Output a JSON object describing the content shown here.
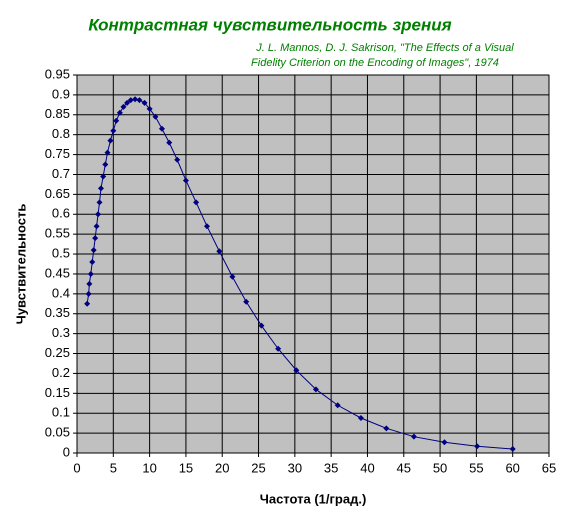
{
  "chart_data": {
    "type": "line",
    "title": "Контрастная чувствительность зрения",
    "subtitle": [
      "J. L. Mannos, D. J. Sakrison, \"The Effects of a Visual",
      "Fidelity Criterion on the Encoding of Images\", 1974"
    ],
    "xlabel": "Частота (1/град.)",
    "ylabel": "Чувствительность",
    "series": [
      {
        "color": "#000080",
        "x": [
          1.4,
          1.6,
          1.7,
          1.9,
          2.1,
          2.3,
          2.5,
          2.7,
          2.9,
          3.1,
          3.3,
          3.6,
          3.9,
          4.2,
          4.6,
          5,
          5.4,
          5.9,
          6.4,
          6.9,
          7.4,
          8,
          8.6,
          9.3,
          10,
          10.8,
          11.7,
          12.7,
          13.8,
          15,
          16.4,
          17.9,
          19.6,
          21.4,
          23.3,
          25.4,
          27.7,
          30.2,
          32.9,
          35.9,
          39.1,
          42.6,
          46.4,
          50.6,
          55.1,
          60
        ],
        "values": [
          0.375,
          0.4,
          0.425,
          0.45,
          0.48,
          0.51,
          0.54,
          0.57,
          0.6,
          0.63,
          0.665,
          0.695,
          0.725,
          0.755,
          0.785,
          0.81,
          0.835,
          0.855,
          0.87,
          0.88,
          0.887,
          0.889,
          0.887,
          0.88,
          0.865,
          0.845,
          0.815,
          0.78,
          0.737,
          0.685,
          0.63,
          0.57,
          0.507,
          0.443,
          0.38,
          0.32,
          0.262,
          0.208,
          0.16,
          0.12,
          0.088,
          0.062,
          0.041,
          0.027,
          0.017,
          0.01
        ]
      }
    ],
    "xlim": [
      0,
      65
    ],
    "xticks": [
      0,
      5,
      10,
      15,
      20,
      25,
      30,
      35,
      40,
      45,
      50,
      55,
      60,
      65
    ],
    "ylim": [
      0,
      0.95
    ],
    "yticks": [
      0,
      0.05,
      0.1,
      0.15,
      0.2,
      0.25,
      0.3,
      0.35,
      0.4,
      0.45,
      0.5,
      0.55,
      0.6,
      0.65,
      0.7,
      0.75,
      0.8,
      0.85,
      0.9,
      0.95
    ],
    "grid": true,
    "plot_background": "#c0c0c0",
    "title_color": "#008000"
  }
}
